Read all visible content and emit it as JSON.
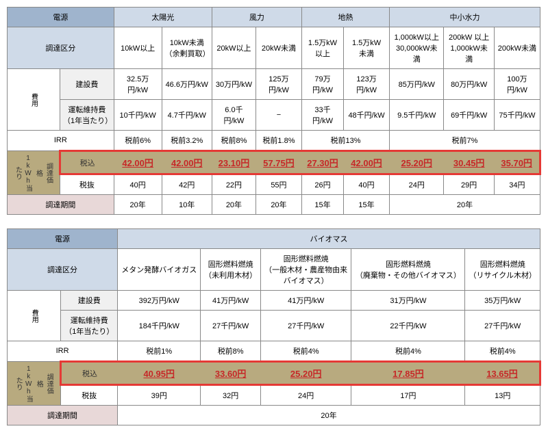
{
  "t1": {
    "h": {
      "src": "電源",
      "solar": "太陽光",
      "wind": "風力",
      "geo": "地熱",
      "hydro": "中小水力",
      "cat": "調達区分",
      "cost": "費用",
      "build": "建設費",
      "oper": "運転維持費\n（1年当たり）",
      "irr": "IRR",
      "price": "調達価\n格\n1kWh当\nたり",
      "incl": "税込",
      "excl": "税抜",
      "period": "調達期間"
    },
    "cats": [
      "10kW以上",
      "10kW未満\n（余剰買取）",
      "20kW以上",
      "20kW未満",
      "1.5万kW\n以上",
      "1.5万kW\n未満",
      "1,000kW以上\n30,000kW未満",
      "200kW 以上\n1,000kW未満",
      "200kW未満"
    ],
    "build": [
      "32.5万円/kW",
      "46.6万円/kW",
      "30万円/kW",
      "125万円/kW",
      "79万円/kW",
      "123万円/kW",
      "85万円/kW",
      "80万円/kW",
      "100万円/kW"
    ],
    "oper": [
      "10千円/kW",
      "4.7千円/kW",
      "6.0千円/kW",
      "−",
      "33千円/kW",
      "48千円/kW",
      "9.5千円/kW",
      "69千円/kW",
      "75千円/kW"
    ],
    "irr": [
      "税前6%",
      "税前3.2%",
      "税前8%",
      "税前1.8%",
      "税前13%",
      "",
      "税前7%",
      "",
      ""
    ],
    "incl": [
      "42.00円",
      "42.00円",
      "23.10円",
      "57.75円",
      "27.30円",
      "42.00円",
      "25.20円",
      "30.45円",
      "35.70円"
    ],
    "excl": [
      "40円",
      "42円",
      "22円",
      "55円",
      "26円",
      "40円",
      "24円",
      "29円",
      "34円"
    ],
    "period": [
      "20年",
      "10年",
      "20年",
      "20年",
      "15年",
      "15年",
      "20年",
      "",
      ""
    ]
  },
  "t2": {
    "h": {
      "bio": "バイオマス"
    },
    "cats": [
      "メタン発酵バイオガス",
      "固形燃料燃焼\n（未利用木材）",
      "固形燃料燃焼\n（一般木材・農産物由来\nバイオマス）",
      "固形燃料燃焼\n（廃棄物・その他バイオマス）",
      "固形燃料燃焼\n（リサイクル木材）"
    ],
    "build": [
      "392万円/kW",
      "41万円/kW",
      "41万円/kW",
      "31万円/kW",
      "35万円/kW"
    ],
    "oper": [
      "184千円/kW",
      "27千円/kW",
      "27千円/kW",
      "22千円/kW",
      "27千円/kW"
    ],
    "irr": [
      "税前1%",
      "税前8%",
      "税前4%",
      "税前4%",
      "税前4%"
    ],
    "incl": [
      "40.95円",
      "33.60円",
      "25.20円",
      "17.85円",
      "13.65円"
    ],
    "excl": [
      "39円",
      "32円",
      "24円",
      "17円",
      "13円"
    ],
    "period": "20年"
  }
}
